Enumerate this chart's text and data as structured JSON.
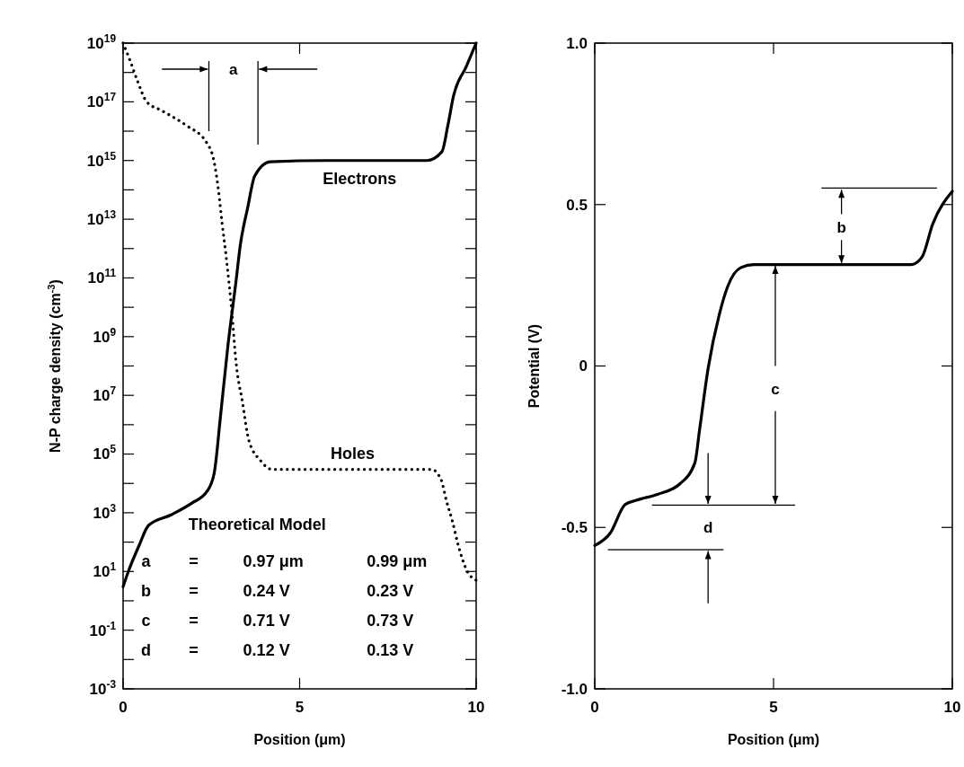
{
  "chart_data": [
    {
      "type": "line",
      "xlabel": "Position (μm)",
      "ylabel": "N-P charge density (cm$^{-3}$)",
      "log": "y",
      "xlim": [
        0,
        10
      ],
      "xticks": [
        0,
        5,
        10
      ],
      "ylim": [
        0.001,
        1e+19
      ],
      "yticks": [
        {
          "value": 0.001,
          "label": "10$^{-3}$"
        },
        {
          "value": 0.01,
          "label": null
        },
        {
          "value": 0.1,
          "label": "10$^{-1}$"
        },
        {
          "value": 1,
          "label": null
        },
        {
          "value": 10,
          "label": "10$^{1}$"
        },
        {
          "value": 100,
          "label": null
        },
        {
          "value": 1000,
          "label": "10$^{3}$"
        },
        {
          "value": 10000,
          "label": null
        },
        {
          "value": 100000,
          "label": "10$^{5}$"
        },
        {
          "value": 1000000,
          "label": null
        },
        {
          "value": 10000000,
          "label": "10$^{7}$"
        },
        {
          "value": 100000000,
          "label": null
        },
        {
          "value": 1000000000,
          "label": "10$^{9}$"
        },
        {
          "value": 10000000000,
          "label": null
        },
        {
          "value": 100000000000,
          "label": "10$^{11}$"
        },
        {
          "value": 1000000000000,
          "label": null
        },
        {
          "value": 10000000000000,
          "label": "10$^{13}$"
        },
        {
          "value": 100000000000000,
          "label": null
        },
        {
          "value": 1000000000000000,
          "label": "10$^{15}$"
        },
        {
          "value": 10000000000000000,
          "label": null
        },
        {
          "value": 100000000000000000,
          "label": "10$^{17}$"
        },
        {
          "value": 1000000000000000000,
          "label": null
        },
        {
          "value": 1e+19,
          "label": "10$^{19}$"
        }
      ],
      "series": [
        {
          "name": "Electrons",
          "color": "#000000",
          "line_style": "solid",
          "x": [
            0,
            0.15,
            0.46,
            0.72,
            1.36,
            1.94,
            2.38,
            2.58,
            2.76,
            2.97,
            3.2,
            3.32,
            3.53,
            3.73,
            4.17,
            5.78,
            8.6,
            9.03,
            9.2,
            9.36,
            9.72,
            10
          ],
          "values": [
            3,
            10,
            80,
            370,
            850,
            2100,
            5400,
            22000,
            2000000.0,
            500000000.0,
            80000000000.0,
            1300000000000.0,
            25000000000000.0,
            300000000000000.0,
            900000000000000.0,
            1000000000000000.0,
            1000000000000000.0,
            2000000000000000.0,
            1.6e+16,
            1.6e+17,
            1.6e+18,
            1e+19
          ]
        },
        {
          "name": "Holes",
          "color": "#000000",
          "line_style": "dotted",
          "x": [
            0,
            0.2,
            0.41,
            0.67,
            1.1,
            1.78,
            2.37,
            2.57,
            2.7,
            2.8,
            2.93,
            3.08,
            3.2,
            3.38,
            3.56,
            3.89,
            4.22,
            8.73,
            9.0,
            9.16,
            9.33,
            9.49,
            9.75,
            10
          ],
          "values": [
            1e+19,
            2.5e+18,
            5e+17,
            1e+17,
            5e+16,
            1.6e+16,
            4000000000000000.0,
            1000000000000000.0,
            100000000000000.0,
            8000000000000.0,
            400000000000.0,
            7000000000.0,
            130000000.0,
            6000000.0,
            300000.0,
            60000.0,
            30000.0,
            30000.0,
            14000.0,
            2500,
            500,
            80,
            10,
            5
          ]
        }
      ],
      "annotations": [
        "a",
        "Theoretical Model",
        "a",
        "=",
        "0.97 μm",
        "0.99 μm",
        "b",
        "=",
        "0.24 V",
        "0.23 V",
        "c",
        "=",
        "0.71 V",
        "0.73 V",
        "d",
        "=",
        "0.12 V",
        "0.13 V"
      ]
    },
    {
      "type": "line",
      "xlabel": "Position (μm)",
      "ylabel": "Potential (V)",
      "xlim": [
        0,
        10
      ],
      "xticks": [
        0,
        5,
        10
      ],
      "ylim": [
        -1,
        1
      ],
      "yticks": [
        {
          "value": -1,
          "label": "-1.0"
        },
        {
          "value": -0.5,
          "label": "-0.5"
        },
        {
          "value": 0,
          "label": "0"
        },
        {
          "value": 0.5,
          "label": "0.5"
        },
        {
          "value": 1,
          "label": "1.0"
        }
      ],
      "series": [
        {
          "color": "#000000",
          "line_style": "solid",
          "x": [
            0,
            0.43,
            0.85,
            1.16,
            1.77,
            2.38,
            2.8,
            2.93,
            3.17,
            3.48,
            3.72,
            4.09,
            4.45,
            8.84,
            9.15,
            9.45,
            10
          ],
          "values": [
            -0.556,
            -0.518,
            -0.429,
            -0.416,
            -0.397,
            -0.365,
            -0.3,
            -0.199,
            -0.008,
            0.158,
            0.247,
            0.305,
            0.314,
            0.314,
            0.337,
            0.439,
            0.541
          ]
        }
      ],
      "annotations": [
        {
          "text": "b",
          "x": 6.9,
          "y": 0.314
        },
        {
          "text": "c",
          "x": 5.05,
          "y": 0.314
        },
        "d"
      ]
    }
  ]
}
